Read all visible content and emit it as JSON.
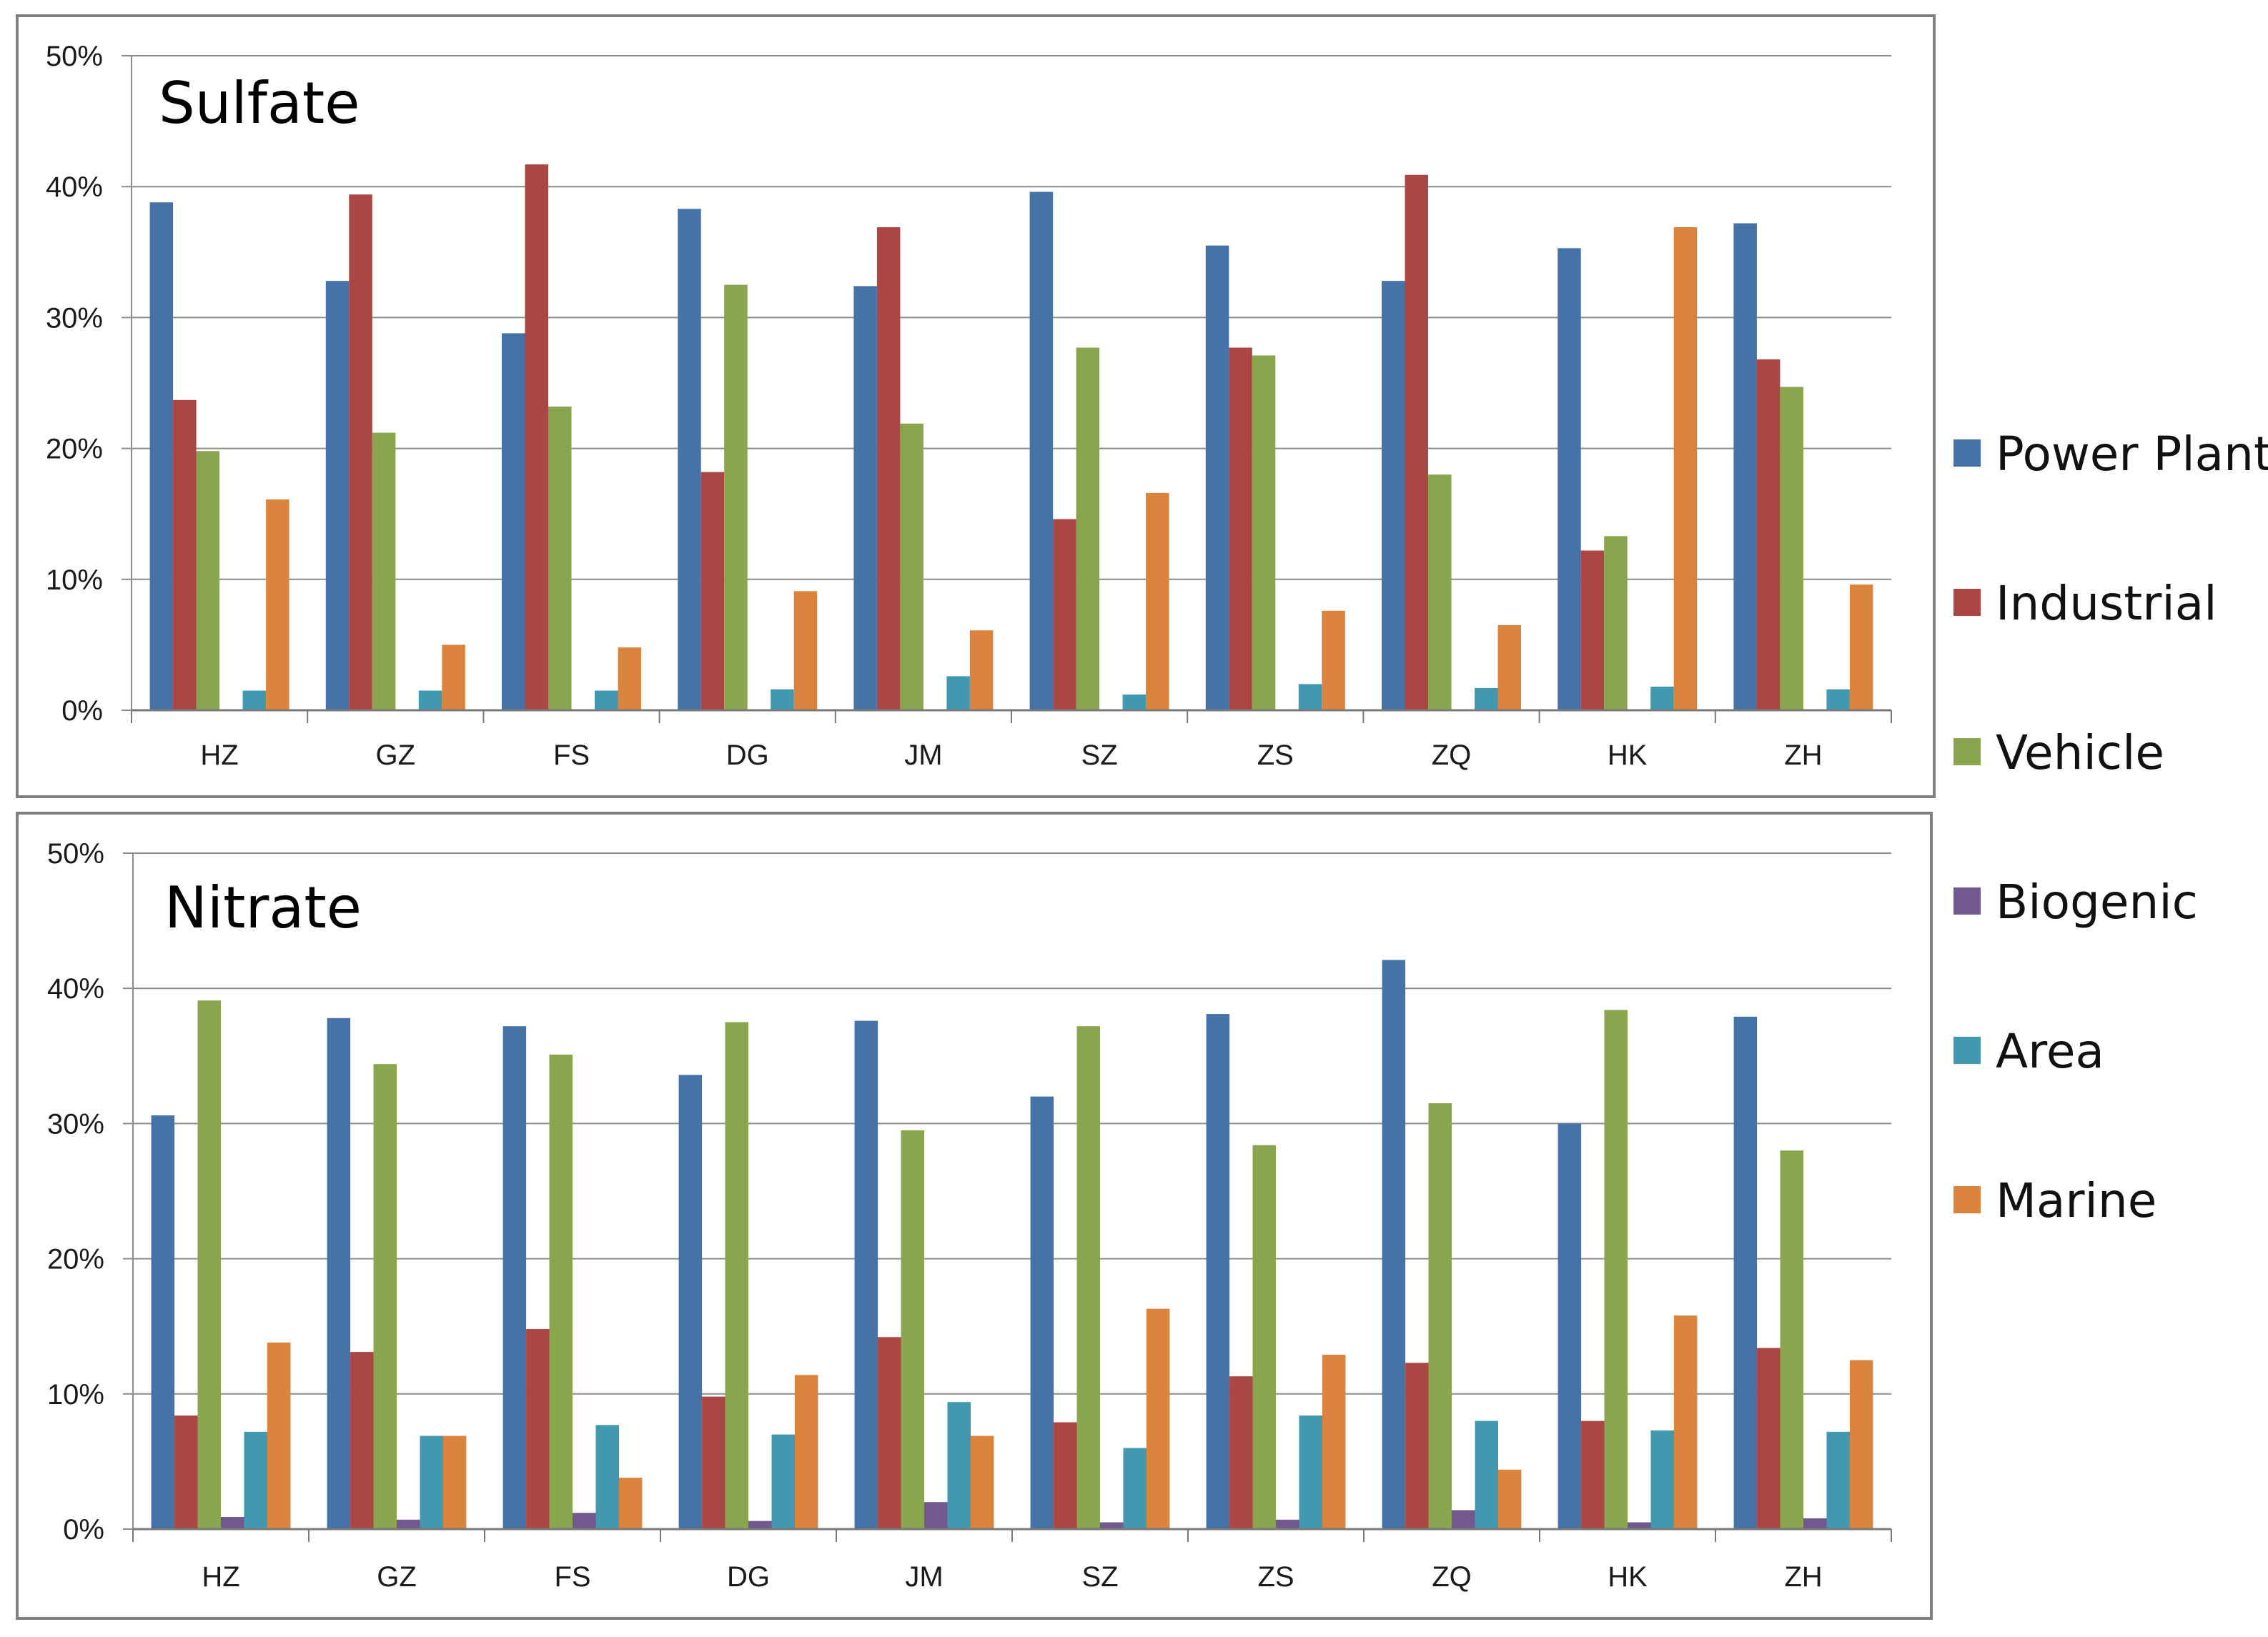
{
  "chart_data": [
    {
      "type": "bar",
      "title": "Sulfate",
      "xlabel": "",
      "ylabel": "",
      "ylim": [
        0,
        50
      ],
      "yticks": [
        "0%",
        "10%",
        "20%",
        "30%",
        "40%",
        "50%"
      ],
      "categories": [
        "HZ",
        "GZ",
        "FS",
        "DG",
        "JM",
        "SZ",
        "ZS",
        "ZQ",
        "HK",
        "ZH"
      ],
      "series": [
        {
          "name": "Power Plant",
          "values": [
            38.8,
            32.8,
            28.8,
            38.3,
            32.4,
            39.6,
            35.5,
            32.8,
            35.3,
            37.2
          ]
        },
        {
          "name": "Industrial",
          "values": [
            23.7,
            39.4,
            41.7,
            18.2,
            36.9,
            14.6,
            27.7,
            40.9,
            12.2,
            26.8
          ]
        },
        {
          "name": "Vehicle",
          "values": [
            19.8,
            21.2,
            23.2,
            32.5,
            21.9,
            27.7,
            27.1,
            18.0,
            13.3,
            24.7
          ]
        },
        {
          "name": "Biogenic",
          "values": [
            0,
            0,
            0,
            0,
            0,
            0,
            0,
            0,
            0,
            0
          ]
        },
        {
          "name": "Area",
          "values": [
            1.5,
            1.5,
            1.5,
            1.6,
            2.6,
            1.2,
            2.0,
            1.7,
            1.8,
            1.6
          ]
        },
        {
          "name": "Marine",
          "values": [
            16.1,
            5.0,
            4.8,
            9.1,
            6.1,
            16.6,
            7.6,
            6.5,
            36.9,
            9.6
          ]
        }
      ]
    },
    {
      "type": "bar",
      "title": "Nitrate",
      "xlabel": "",
      "ylabel": "",
      "ylim": [
        0,
        50
      ],
      "yticks": [
        "0%",
        "10%",
        "20%",
        "30%",
        "40%",
        "50%"
      ],
      "categories": [
        "HZ",
        "GZ",
        "FS",
        "DG",
        "JM",
        "SZ",
        "ZS",
        "ZQ",
        "HK",
        "ZH"
      ],
      "series": [
        {
          "name": "Power Plant",
          "values": [
            30.6,
            37.8,
            37.2,
            33.6,
            37.6,
            32.0,
            38.1,
            42.1,
            30.0,
            37.9
          ]
        },
        {
          "name": "Industrial",
          "values": [
            8.4,
            13.1,
            14.8,
            9.8,
            14.2,
            7.9,
            11.3,
            12.3,
            8.0,
            13.4
          ]
        },
        {
          "name": "Vehicle",
          "values": [
            39.1,
            34.4,
            35.1,
            37.5,
            29.5,
            37.2,
            28.4,
            31.5,
            38.4,
            28.0
          ]
        },
        {
          "name": "Biogenic",
          "values": [
            0.9,
            0.7,
            1.2,
            0.6,
            2.0,
            0.5,
            0.7,
            1.4,
            0.5,
            0.8
          ]
        },
        {
          "name": "Area",
          "values": [
            7.2,
            6.9,
            7.7,
            7.0,
            9.4,
            6.0,
            8.4,
            8.0,
            7.3,
            7.2
          ]
        },
        {
          "name": "Marine",
          "values": [
            13.8,
            6.9,
            3.8,
            11.4,
            6.9,
            16.3,
            12.9,
            4.4,
            15.8,
            12.5
          ]
        }
      ]
    }
  ],
  "legend": {
    "placement": "right",
    "items": [
      {
        "label": "Power Plant",
        "color": "#4572A7"
      },
      {
        "label": "Industrial",
        "color": "#AA4643"
      },
      {
        "label": "Vehicle",
        "color": "#89A54E"
      },
      {
        "label": "Biogenic",
        "color": "#71588F"
      },
      {
        "label": "Area",
        "color": "#4198AF"
      },
      {
        "label": "Marine",
        "color": "#DB843D"
      }
    ]
  }
}
